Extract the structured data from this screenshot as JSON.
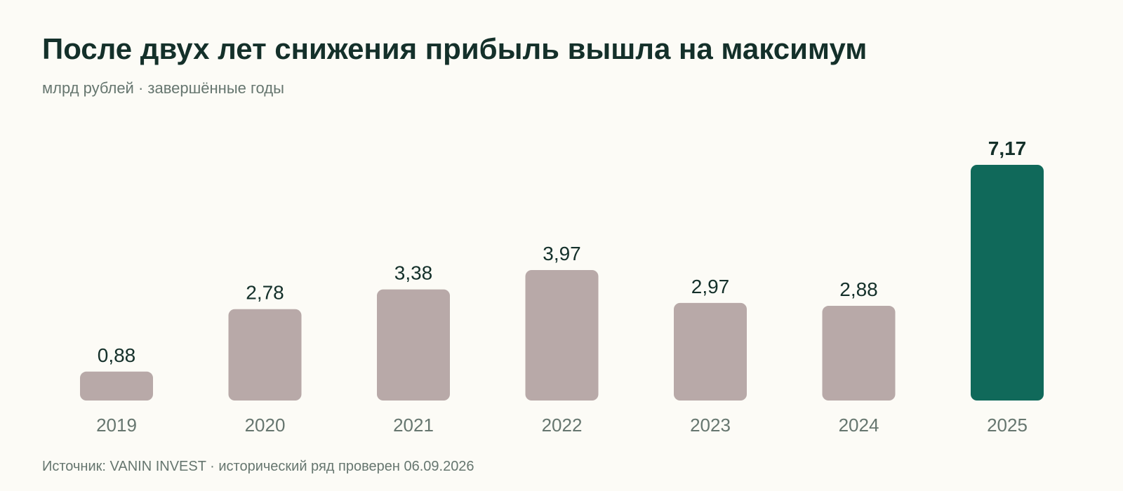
{
  "title": "После двух лет снижения прибыль вышла на максимум",
  "subtitle": "млрд рублей · завершённые годы",
  "source": "Источник: VANIN INVEST · исторический ряд проверен 06.09.2026",
  "colors": {
    "background": "#fcfbf6",
    "bar": "#b8a9a8",
    "highlight_bar": "#10695a",
    "text": "#14302a",
    "muted_text": "#66766f"
  },
  "chart_data": {
    "type": "bar",
    "title": "После двух лет снижения прибыль вышла на максимум",
    "subtitle": "млрд рублей · завершённые годы",
    "categories": [
      "2019",
      "2020",
      "2021",
      "2022",
      "2023",
      "2024",
      "2025"
    ],
    "values": [
      0.88,
      2.78,
      3.38,
      3.97,
      2.97,
      2.88,
      7.17
    ],
    "value_labels": [
      "0,88",
      "2,78",
      "3,38",
      "3,97",
      "2,97",
      "2,88",
      "7,17"
    ],
    "highlight_index": 6,
    "xlabel": "",
    "ylabel": "",
    "ylim": [
      0,
      7.17
    ],
    "grid": false,
    "legend": "none"
  }
}
